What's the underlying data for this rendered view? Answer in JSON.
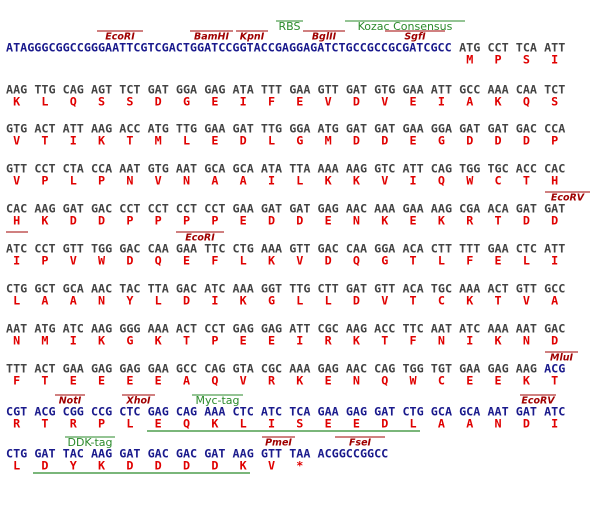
{
  "rows": [
    {
      "lead": "ATAGGGCGGCCGGGAATTCGTCGACTGGATCCGGTACCGAGGAGATCTGCCGCCGCGATCGCC",
      "codons": [
        "ATG",
        "CCT",
        "TCA",
        "ATT"
      ],
      "translation": [
        "M",
        "P",
        "S",
        "I"
      ],
      "features": [
        {
          "label": "EcoRI"
        },
        {
          "label": "BamHI"
        },
        {
          "label": "KpnI"
        },
        {
          "label": "BglII"
        },
        {
          "label": "SgfI"
        },
        {
          "label": "RBS"
        },
        {
          "label": "Kozac Consensus"
        }
      ]
    },
    {
      "codons": [
        "AAG",
        "TTG",
        "CAG",
        "AGT",
        "TCT",
        "GAT",
        "GGA",
        "GAG",
        "ATA",
        "TTT",
        "GAA",
        "GTT",
        "GAT",
        "GTG",
        "GAA",
        "ATT",
        "GCC",
        "AAA",
        "CAA",
        "TCT"
      ],
      "translation": [
        "K",
        "L",
        "Q",
        "S",
        "S",
        "D",
        "G",
        "E",
        "I",
        "F",
        "E",
        "V",
        "D",
        "V",
        "E",
        "I",
        "A",
        "K",
        "Q",
        "S"
      ],
      "features": []
    },
    {
      "codons": [
        "GTG",
        "ACT",
        "ATT",
        "AAG",
        "ACC",
        "ATG",
        "TTG",
        "GAA",
        "GAT",
        "TTG",
        "GGA",
        "ATG",
        "GAT",
        "GAT",
        "GAA",
        "GGA",
        "GAT",
        "GAT",
        "GAC",
        "CCA"
      ],
      "translation": [
        "V",
        "T",
        "I",
        "K",
        "T",
        "M",
        "L",
        "E",
        "D",
        "L",
        "G",
        "M",
        "D",
        "D",
        "E",
        "G",
        "D",
        "D",
        "D",
        "P"
      ],
      "features": []
    },
    {
      "codons": [
        "GTT",
        "CCT",
        "CTA",
        "CCA",
        "AAT",
        "GTG",
        "AAT",
        "GCA",
        "GCA",
        "ATA",
        "TTA",
        "AAA",
        "AAG",
        "GTC",
        "ATT",
        "CAG",
        "TGG",
        "TGC",
        "ACC",
        "CAC"
      ],
      "translation": [
        "V",
        "P",
        "L",
        "P",
        "N",
        "V",
        "N",
        "A",
        "A",
        "I",
        "L",
        "K",
        "K",
        "V",
        "I",
        "Q",
        "W",
        "C",
        "T",
        "H"
      ],
      "features": []
    },
    {
      "codons": [
        "CAC",
        "AAG",
        "GAT",
        "GAC",
        "CCT",
        "CCT",
        "CCT",
        "CCT",
        "GAA",
        "GAT",
        "GAT",
        "GAG",
        "AAC",
        "AAA",
        "GAA",
        "AAG",
        "CGA",
        "ACA",
        "GAT",
        "GAT"
      ],
      "translation": [
        "H",
        "K",
        "D",
        "D",
        "P",
        "P",
        "P",
        "P",
        "E",
        "D",
        "D",
        "E",
        "N",
        "K",
        "E",
        "K",
        "R",
        "T",
        "D",
        "D"
      ],
      "features": [
        {
          "label": "EcoRV"
        }
      ]
    },
    {
      "codons": [
        "ATC",
        "CCT",
        "GTT",
        "TGG",
        "GAC",
        "CAA",
        "GAA",
        "TTC",
        "CTG",
        "AAA",
        "GTT",
        "GAC",
        "CAA",
        "GGA",
        "ACA",
        "CTT",
        "TTT",
        "GAA",
        "CTC",
        "ATT"
      ],
      "translation": [
        "I",
        "P",
        "V",
        "W",
        "D",
        "Q",
        "E",
        "F",
        "L",
        "K",
        "V",
        "D",
        "Q",
        "G",
        "T",
        "L",
        "F",
        "E",
        "L",
        "I"
      ],
      "features": [
        {
          "label": "EcoRI"
        }
      ]
    },
    {
      "codons": [
        "CTG",
        "GCT",
        "GCA",
        "AAC",
        "TAC",
        "TTA",
        "GAC",
        "ATC",
        "AAA",
        "GGT",
        "TTG",
        "CTT",
        "GAT",
        "GTT",
        "ACA",
        "TGC",
        "AAA",
        "ACT",
        "GTT",
        "GCC"
      ],
      "translation": [
        "L",
        "A",
        "A",
        "N",
        "Y",
        "L",
        "D",
        "I",
        "K",
        "G",
        "L",
        "L",
        "D",
        "V",
        "T",
        "C",
        "K",
        "T",
        "V",
        "A"
      ],
      "features": []
    },
    {
      "codons": [
        "AAT",
        "ATG",
        "ATC",
        "AAG",
        "GGG",
        "AAA",
        "ACT",
        "CCT",
        "GAG",
        "GAG",
        "ATT",
        "CGC",
        "AAG",
        "ACC",
        "TTC",
        "AAT",
        "ATC",
        "AAA",
        "AAT",
        "GAC"
      ],
      "translation": [
        "N",
        "M",
        "I",
        "K",
        "G",
        "K",
        "T",
        "P",
        "E",
        "E",
        "I",
        "R",
        "K",
        "T",
        "F",
        "N",
        "I",
        "K",
        "N",
        "D"
      ],
      "features": []
    },
    {
      "codons": [
        "TTT",
        "ACT",
        "GAA",
        "GAG",
        "GAG",
        "GAA",
        "GCC",
        "CAG",
        "GTA",
        "CGC",
        "AAA",
        "GAG",
        "AAC",
        "CAG",
        "TGG",
        "TGT",
        "GAA",
        "GAG",
        "AAG",
        "ACG"
      ],
      "translation": [
        "F",
        "T",
        "E",
        "E",
        "E",
        "E",
        "A",
        "Q",
        "V",
        "R",
        "K",
        "E",
        "N",
        "Q",
        "W",
        "C",
        "E",
        "E",
        "K",
        "T"
      ],
      "features": [
        {
          "label": "MluI"
        }
      ]
    },
    {
      "codons": [
        "CGT",
        "ACG",
        "CGG",
        "CCG",
        "CTC",
        "GAG",
        "CAG",
        "AAA",
        "CTC",
        "ATC",
        "TCA",
        "GAA",
        "GAG",
        "GAT",
        "CTG",
        "GCA",
        "GCA",
        "AAT",
        "GAT",
        "ATC"
      ],
      "translation": [
        "R",
        "T",
        "R",
        "P",
        "L",
        "E",
        "Q",
        "K",
        "L",
        "I",
        "S",
        "E",
        "E",
        "D",
        "L",
        "A",
        "A",
        "N",
        "D",
        "I"
      ],
      "features": [
        {
          "label": "NotI"
        },
        {
          "label": "XhoI"
        },
        {
          "label": "Myc-tag"
        },
        {
          "label": "EcoRV"
        }
      ]
    },
    {
      "codons": [
        "CTG",
        "GAT",
        "TAC",
        "AAG",
        "GAT",
        "GAC",
        "GAC",
        "GAT",
        "AAG",
        "GTT",
        "TAA"
      ],
      "tail": "ACGGCCGGCC",
      "translation": [
        "L",
        "D",
        "Y",
        "K",
        "D",
        "D",
        "D",
        "D",
        "K",
        "V",
        "*"
      ],
      "features": [
        {
          "label": "DDK-tag"
        },
        {
          "label": "PmeI"
        },
        {
          "label": "FseI"
        }
      ]
    }
  ]
}
